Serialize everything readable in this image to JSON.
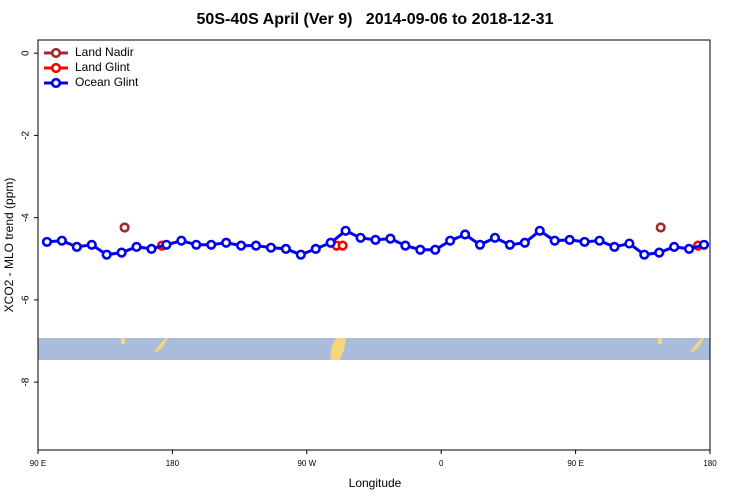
{
  "chart_data": {
    "type": "line",
    "title": "50S-40S April (Ver 9)   2014-09-06 to 2018-12-31",
    "xlabel": "Longitude",
    "ylabel": "XCO2 - MLO trend (ppm)",
    "xlim": [
      90,
      540
    ],
    "ylim": [
      -9.65,
      0.32
    ],
    "xticks": [
      {
        "value": 90,
        "label": "90 E"
      },
      180,
      {
        "value": 270,
        "label": "90 W"
      },
      {
        "value": 360,
        "label": "0"
      },
      {
        "value": 450,
        "label": "90 E"
      },
      {
        "value": 540,
        "label": "180"
      }
    ],
    "yticks": [
      0,
      -2,
      -4,
      -6,
      -8
    ],
    "legend": "top-left",
    "series": [
      {
        "name": "Land Nadir",
        "color": "#a52a2a",
        "x": [
          148,
          507
        ],
        "values": [
          -4.24,
          -4.24
        ]
      },
      {
        "name": "Land Glint",
        "color": "#ff0000",
        "x": [
          173,
          290,
          294,
          532
        ],
        "values": [
          -4.68,
          -4.68,
          -4.68,
          -4.68
        ]
      },
      {
        "name": "Ocean Glint",
        "color": "#0000ee",
        "x": [
          96,
          106,
          116,
          126,
          136,
          146,
          156,
          166,
          176,
          186,
          196,
          206,
          216,
          226,
          236,
          246,
          256,
          266,
          276,
          286,
          296,
          306,
          316,
          326,
          336,
          346,
          356,
          366,
          376,
          386,
          396,
          406,
          416,
          426,
          436,
          446,
          456,
          466,
          476,
          486,
          496,
          506,
          516,
          526,
          536
        ],
        "values": [
          -4.59,
          -4.56,
          -4.71,
          -4.66,
          -4.9,
          -4.85,
          -4.71,
          -4.76,
          -4.66,
          -4.56,
          -4.66,
          -4.66,
          -4.61,
          -4.68,
          -4.68,
          -4.73,
          -4.76,
          -4.9,
          -4.76,
          -4.61,
          -4.32,
          -4.49,
          -4.54,
          -4.51,
          -4.68,
          -4.78,
          -4.78,
          -4.56,
          -4.41,
          -4.66,
          -4.49,
          -4.66,
          -4.61,
          -4.32,
          -4.56,
          -4.54,
          -4.59,
          -4.56,
          -4.71,
          -4.63,
          -4.9,
          -4.85,
          -4.71,
          -4.76,
          -4.66
        ]
      }
    ]
  }
}
